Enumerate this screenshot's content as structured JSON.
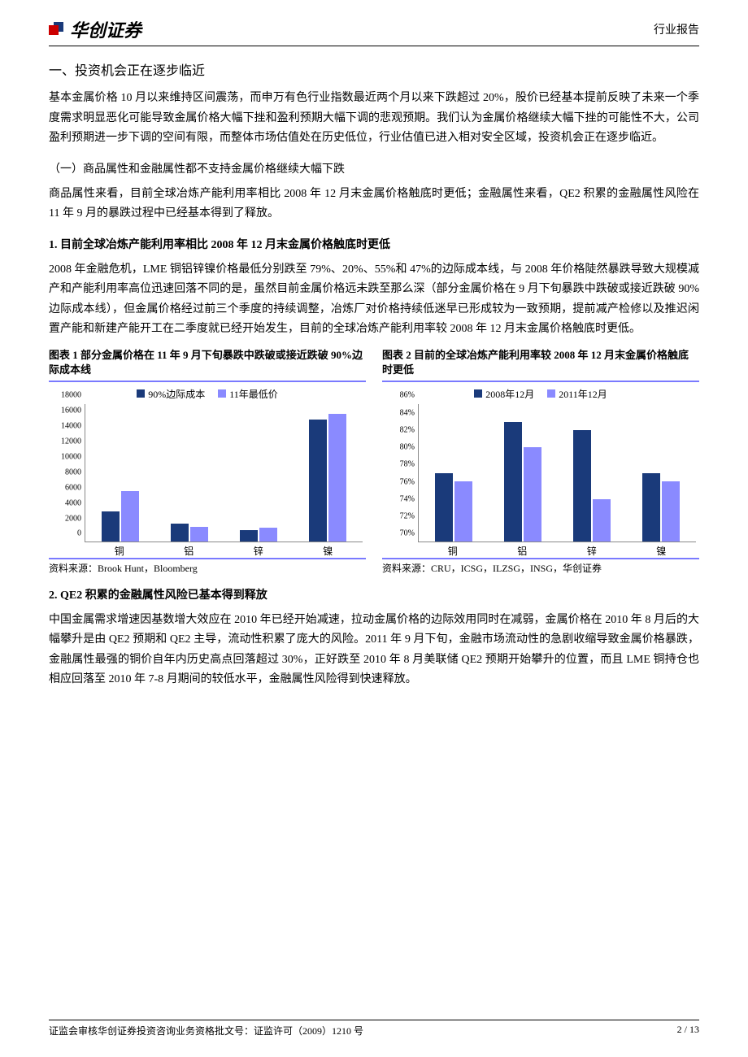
{
  "header": {
    "company": "华创证券",
    "reportType": "行业报告"
  },
  "section1": {
    "title": "一、投资机会正在逐步临近",
    "para1": "基本金属价格 10 月以来维持区间震荡，而申万有色行业指数最近两个月以来下跌超过 20%，股价已经基本提前反映了未来一个季度需求明显恶化可能导致金属价格大幅下挫和盈利预期大幅下调的悲观预期。我们认为金属价格继续大幅下挫的可能性不大，公司盈利预期进一步下调的空间有限，而整体市场估值处在历史低位，行业估值已进入相对安全区域，投资机会正在逐步临近。",
    "sub1Title": "（一）商品属性和金融属性都不支持金属价格继续大幅下跌",
    "sub1Para": "商品属性来看，目前全球冶炼产能利用率相比 2008 年 12 月末金属价格触底时更低；金融属性来看，QE2 积累的金融属性风险在 11 年 9 月的暴跌过程中已经基本得到了释放。",
    "bold1Title": "1. 目前全球冶炼产能利用率相比 2008 年 12 月末金属价格触底时更低",
    "bold1Para": "2008 年金融危机，LME 铜铝锌镍价格最低分别跌至 79%、20%、55%和 47%的边际成本线，与 2008 年价格陡然暴跌导致大规模减产和产能利用率高位迅速回落不同的是，虽然目前金属价格远未跌至那么深（部分金属价格在 9 月下旬暴跌中跌破或接近跌破 90%边际成本线），但金属价格经过前三个季度的持续调整，冶炼厂对价格持续低迷早已形成较为一致预期，提前减产检修以及推迟闲置产能和新建产能开工在二季度就已经开始发生，目前的全球冶炼产能利用率较 2008 年 12 月末金属价格触底时更低。",
    "bold2Title": "2. QE2 积累的金融属性风险已基本得到释放",
    "bold2Para": "中国金属需求增速因基数增大效应在 2010 年已经开始减速，拉动金属价格的边际效用同时在减弱，金属价格在 2010 年 8 月后的大幅攀升是由 QE2 预期和 QE2 主导，流动性积累了庞大的风险。2011 年 9 月下旬，金融市场流动性的急剧收缩导致金属价格暴跌，金融属性最强的铜价自年内历史高点回落超过 30%，正好跌至 2010 年 8 月美联储 QE2 预期开始攀升的位置，而且 LME 铜持仓也相应回落至 2010 年 7-8 月期间的较低水平，金融属性风险得到快速释放。"
  },
  "chart1": {
    "titlePrefix": "图表 1",
    "titleText": "  部分金属价格在 11 年 9 月下旬暴跌中跌破或接近跌破 90%边际成本线",
    "type": "bar",
    "categories": [
      "铜",
      "铝",
      "锌",
      "镍"
    ],
    "series": [
      {
        "name": "90%边际成本",
        "color": "#1a3a7a",
        "values": [
          4000,
          2400,
          1500,
          16000
        ]
      },
      {
        "name": "11年最低价",
        "color": "#8a8aff",
        "values": [
          6600,
          2000,
          1800,
          16800
        ]
      }
    ],
    "ylim": [
      0,
      18000
    ],
    "ytick_step": 2000,
    "yticks": [
      "0",
      "2000",
      "4000",
      "6000",
      "8000",
      "10000",
      "12000",
      "14000",
      "16000",
      "18000"
    ],
    "source": "资料来源：Brook Hunt，Bloomberg"
  },
  "chart2": {
    "titlePrefix": "图表 2",
    "titleText": "  目前的全球冶炼产能利用率较 2008 年 12 月末金属价格触底时更低",
    "type": "bar",
    "categories": [
      "铜",
      "铝",
      "锌",
      "镍"
    ],
    "series": [
      {
        "name": "2008年12月",
        "color": "#1a3a7a",
        "values": [
          78,
          84,
          83,
          78
        ]
      },
      {
        "name": "2011年12月",
        "color": "#8a8aff",
        "values": [
          77,
          81,
          75,
          77
        ]
      }
    ],
    "ylim": [
      70,
      86
    ],
    "ytick_step": 2,
    "yticks": [
      "70%",
      "72%",
      "74%",
      "76%",
      "78%",
      "80%",
      "82%",
      "84%",
      "86%"
    ],
    "source": "资料来源：CRU，ICSG，ILZSG，INSG，华创证券"
  },
  "footer": {
    "left": "证监会审核华创证券投资咨询业务资格批文号：证监许可（2009）1210 号",
    "right": "2 / 13"
  },
  "colors": {
    "darkBlue": "#1a3a7a",
    "lightPurple": "#8a8aff",
    "chartBorder": "#7a7aff"
  }
}
